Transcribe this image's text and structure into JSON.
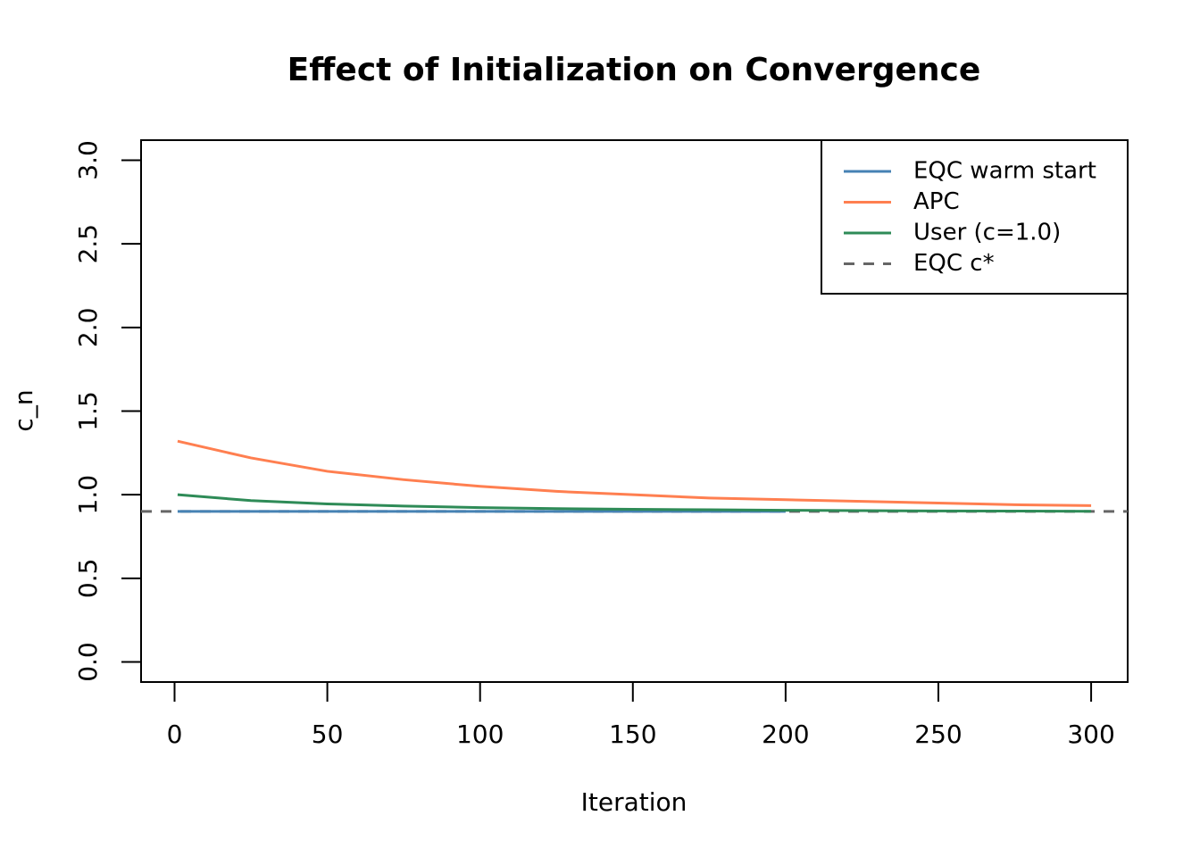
{
  "chart_data": {
    "type": "line",
    "title": "Effect of Initialization on Convergence",
    "x_label": "Iteration",
    "y_label": "c_n",
    "x": [
      1,
      25,
      50,
      75,
      100,
      125,
      150,
      175,
      200,
      225,
      250,
      275,
      300
    ],
    "series": [
      {
        "name": "EQC warm start",
        "color": "#4682b4",
        "values": [
          0.9,
          0.9,
          0.9,
          0.9,
          0.9,
          0.9,
          0.9,
          0.9,
          0.9,
          null,
          null,
          null,
          null
        ]
      },
      {
        "name": "APC",
        "color": "#ff7f50",
        "values": [
          1.32,
          1.22,
          1.14,
          1.09,
          1.05,
          1.02,
          1.0,
          0.98,
          0.97,
          0.96,
          0.95,
          0.94,
          0.935
        ]
      },
      {
        "name": "User (c=1.0)",
        "color": "#2e8b57",
        "values": [
          1.0,
          0.965,
          0.945,
          0.932,
          0.923,
          0.917,
          0.913,
          0.91,
          0.907,
          0.905,
          0.903,
          0.902,
          0.901
        ]
      }
    ],
    "reference_line": {
      "name": "EQC c*",
      "color": "#666666",
      "value": 0.9,
      "dashed": true
    },
    "xlim": [
      -10.96,
      311.96
    ],
    "xticks": [
      0,
      50,
      100,
      150,
      200,
      250,
      300
    ],
    "ylim": [
      -0.12,
      3.12
    ],
    "yticks": [
      {
        "value": 0,
        "label": "0.0"
      },
      {
        "value": 0.5,
        "label": "0.5"
      },
      {
        "value": 1,
        "label": "1.0"
      },
      {
        "value": 1.5,
        "label": "1.5"
      },
      {
        "value": 2,
        "label": "2.0"
      },
      {
        "value": 2.5,
        "label": "2.5"
      },
      {
        "value": 3,
        "label": "3.0"
      }
    ],
    "legend": "top-right",
    "grid": false
  }
}
